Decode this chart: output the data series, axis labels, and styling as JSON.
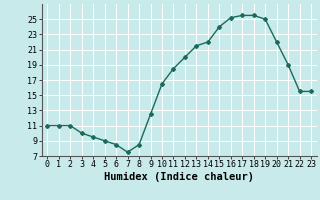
{
  "x": [
    0,
    1,
    2,
    3,
    4,
    5,
    6,
    7,
    8,
    9,
    10,
    11,
    12,
    13,
    14,
    15,
    16,
    17,
    18,
    19,
    20,
    21,
    22,
    23
  ],
  "y": [
    11,
    11,
    11,
    10,
    9.5,
    9,
    8.5,
    7.5,
    8.5,
    12.5,
    16.5,
    18.5,
    20,
    21.5,
    22,
    24,
    25.2,
    25.5,
    25.5,
    25,
    22,
    19,
    15.5,
    15.5
  ],
  "line_color": "#1a6b5a",
  "marker": "D",
  "marker_size": 2.0,
  "bg_color": "#c8eaea",
  "grid_color": "#ffffff",
  "xlabel": "Humidex (Indice chaleur)",
  "xlim": [
    -0.5,
    23.5
  ],
  "ylim": [
    7,
    27
  ],
  "yticks": [
    7,
    9,
    11,
    13,
    15,
    17,
    19,
    21,
    23,
    25
  ],
  "xticks": [
    0,
    1,
    2,
    3,
    4,
    5,
    6,
    7,
    8,
    9,
    10,
    11,
    12,
    13,
    14,
    15,
    16,
    17,
    18,
    19,
    20,
    21,
    22,
    23
  ],
  "tick_fontsize": 6,
  "xlabel_fontsize": 7.5,
  "line_width": 1.0
}
